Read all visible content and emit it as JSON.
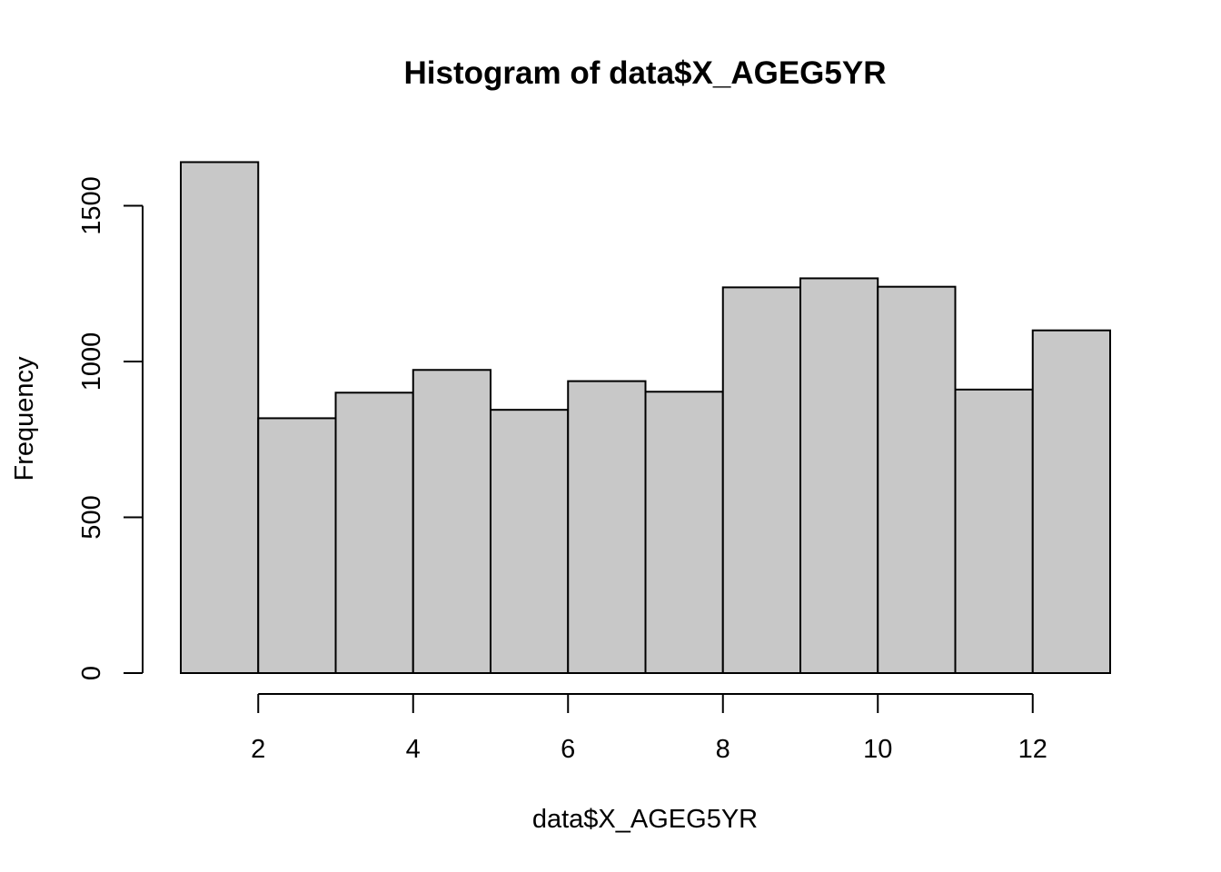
{
  "chart_data": {
    "type": "bar",
    "title": "Histogram of data$X_AGEG5YR",
    "xlabel": "data$X_AGEG5YR",
    "ylabel": "Frequency",
    "bins": [
      {
        "from": 1,
        "to": 2,
        "count": 1640
      },
      {
        "from": 2,
        "to": 3,
        "count": 818
      },
      {
        "from": 3,
        "to": 4,
        "count": 900
      },
      {
        "from": 4,
        "to": 5,
        "count": 973
      },
      {
        "from": 5,
        "to": 6,
        "count": 845
      },
      {
        "from": 6,
        "to": 7,
        "count": 937
      },
      {
        "from": 7,
        "to": 8,
        "count": 903
      },
      {
        "from": 8,
        "to": 9,
        "count": 1238
      },
      {
        "from": 9,
        "to": 10,
        "count": 1267
      },
      {
        "from": 10,
        "to": 11,
        "count": 1240
      },
      {
        "from": 11,
        "to": 12,
        "count": 910
      },
      {
        "from": 12,
        "to": 13,
        "count": 1100
      }
    ],
    "xlim": [
      1,
      13
    ],
    "ylim": [
      0,
      1640
    ],
    "x_ticks": [
      "2",
      "4",
      "6",
      "8",
      "10",
      "12"
    ],
    "y_ticks": [
      "0",
      "500",
      "1000",
      "1500"
    ],
    "bar_color": "#c8c8c8",
    "grid": false,
    "legend": "none"
  }
}
